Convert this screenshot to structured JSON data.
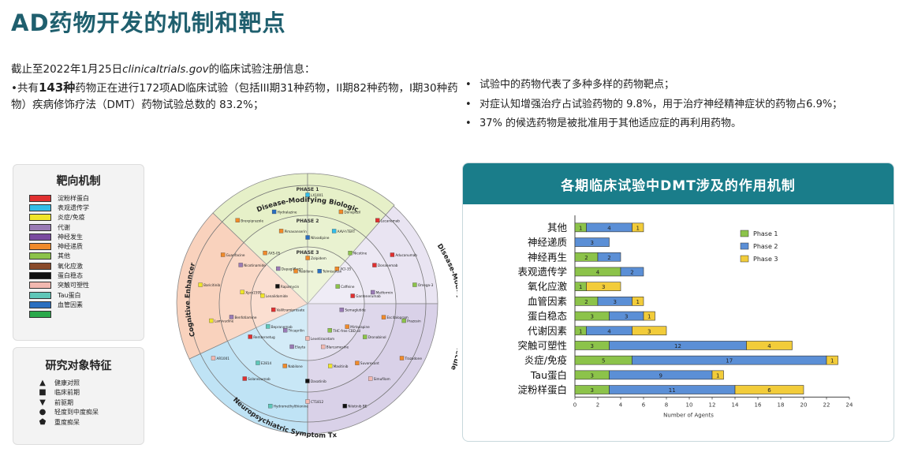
{
  "page": {
    "title": "AD药物开发的机制和靶点",
    "intro_prefix": "截止至2022年1月25日",
    "intro_site": "clinicaltrials.gov",
    "intro_suffix": "的临床试验注册信息：",
    "left_bullet_pre": "•共有",
    "left_bullet_bold": "143种",
    "left_bullet_rest": "药物正在进行172项AD临床试验（包括III期31种药物，II期82种药物，I期30种药物）疾病修饰疗法（DMT）药物试验总数的 83.2%；",
    "right_bullets": [
      "试验中的药物代表了多种多样的药物靶点；",
      "对症认知增强治疗占试验药物的 9.8%，用于治疗神经精神症状的药物占6.9%；",
      "37% 的候选药物是被批准用于其他适应症的再利用药物。"
    ]
  },
  "legend_targets": {
    "title": "靶向机制",
    "items": [
      {
        "label": "淀粉样蛋白",
        "color": "#e03030"
      },
      {
        "label": "表观遗传学",
        "color": "#33bde8"
      },
      {
        "label": "炎症/免疫",
        "color": "#f0e62a"
      },
      {
        "label": "代谢",
        "color": "#9a7bb5"
      },
      {
        "label": "神经发生",
        "color": "#7a4aa0"
      },
      {
        "label": "神经递质",
        "color": "#f08a2a"
      },
      {
        "label": "其他",
        "color": "#8cc34a"
      },
      {
        "label": "氧化应激",
        "color": "#8a4a2a"
      },
      {
        "label": "蛋白稳态",
        "color": "#111111"
      },
      {
        "label": "突触可塑性",
        "color": "#f2b8b0"
      },
      {
        "label": "Tau蛋白",
        "color": "#5fc7b8"
      },
      {
        "label": "血管因素",
        "color": "#2a6fc0"
      },
      {
        "label": "",
        "color": "#2aa84a"
      }
    ]
  },
  "legend_subjects": {
    "title": "研究对象特征",
    "items": [
      {
        "symbol": "▲",
        "label": "健康对照"
      },
      {
        "symbol": "■",
        "label": "临床前期"
      },
      {
        "symbol": "▼",
        "label": "前驱期"
      },
      {
        "symbol": "●",
        "label": "轻度到中度痴呆"
      },
      {
        "symbol": "⬟",
        "label": "重度痴呆"
      }
    ]
  },
  "wheel": {
    "outer_labels": {
      "top": "Disease-Modifying Biologic",
      "left": "Cognitive Enhancer",
      "bottom": "Neuropsychiatric Symptom Tx",
      "right": "Disease-Modifying Small Molecule"
    },
    "phases": [
      "PHASE 1",
      "PHASE 2",
      "PHASE 3"
    ],
    "sample_drugs": [
      {
        "text": "LX1001",
        "color": "#33bde8"
      },
      {
        "text": "AAV-hTERT",
        "color": "#33bde8"
      },
      {
        "text": "ACI-35",
        "color": "#f08a2a"
      },
      {
        "text": "Donepezil",
        "color": "#f08a2a"
      },
      {
        "text": "Nicotine",
        "color": "#8cc34a"
      },
      {
        "text": "Caffeine",
        "color": "#8cc34a"
      },
      {
        "text": "Lecanemab",
        "color": "#e03030"
      },
      {
        "text": "Donanemab",
        "color": "#e03030"
      },
      {
        "text": "Gantenerumab",
        "color": "#e03030"
      },
      {
        "text": "Aducanumab",
        "color": "#e03030"
      },
      {
        "text": "Metformin",
        "color": "#9a7bb5"
      },
      {
        "text": "Semaglutide",
        "color": "#9a7bb5"
      },
      {
        "text": "Omega-3",
        "color": "#8cc34a"
      },
      {
        "text": "Escitalopram",
        "color": "#f08a2a"
      },
      {
        "text": "Mirtazapine",
        "color": "#f08a2a"
      },
      {
        "text": "Prazosin",
        "color": "#8cc34a"
      },
      {
        "text": "Dronabinol",
        "color": "#8cc34a"
      },
      {
        "text": "THC-free CBD oil",
        "color": "#8cc34a"
      },
      {
        "text": "Trazodone",
        "color": "#f08a2a"
      },
      {
        "text": "Suvorexant",
        "color": "#f08a2a"
      },
      {
        "text": "Blarcamesine",
        "color": "#f2b8b0"
      },
      {
        "text": "Simufilam",
        "color": "#f2b8b0"
      },
      {
        "text": "Masitinib",
        "color": "#f0e62a"
      },
      {
        "text": "Levetiracetam",
        "color": "#f2b8b0"
      },
      {
        "text": "Nilotinib BE",
        "color": "#111111"
      },
      {
        "text": "Dasatinib",
        "color": "#111111"
      },
      {
        "text": "Elayta",
        "color": "#9a7bb5"
      },
      {
        "text": "CT1812",
        "color": "#f2b8b0"
      },
      {
        "text": "Nabilone",
        "color": "#f08a2a"
      },
      {
        "text": "Tricaprilin",
        "color": "#9a7bb5"
      },
      {
        "text": "Hydromethylthionine",
        "color": "#5fc7b8"
      },
      {
        "text": "E2814",
        "color": "#5fc7b8"
      },
      {
        "text": "Bepranemab",
        "color": "#5fc7b8"
      },
      {
        "text": "Solanezumab",
        "color": "#e03030"
      },
      {
        "text": "Remternetug",
        "color": "#e03030"
      },
      {
        "text": "Valiltramiprosate",
        "color": "#e03030"
      },
      {
        "text": "AR1001",
        "color": "#f2b8b0"
      },
      {
        "text": "Benfotiamine",
        "color": "#9a7bb5"
      },
      {
        "text": "Lenalidomide",
        "color": "#f0e62a"
      },
      {
        "text": "Lamivudine",
        "color": "#f0e62a"
      },
      {
        "text": "Xpro1595",
        "color": "#f0e62a"
      },
      {
        "text": "Rapamycin",
        "color": "#111111"
      },
      {
        "text": "Baricitinib",
        "color": "#f0e62a"
      },
      {
        "text": "Nicotinamide",
        "color": "#9a7bb5"
      },
      {
        "text": "Dapagliflozin",
        "color": "#9a7bb5"
      },
      {
        "text": "Guanfacine",
        "color": "#f08a2a"
      },
      {
        "text": "AXS-05",
        "color": "#f08a2a"
      },
      {
        "text": "Nabilone",
        "color": "#f08a2a"
      },
      {
        "text": "Brexpiprazole",
        "color": "#f08a2a"
      },
      {
        "text": "Pimavanserin",
        "color": "#f08a2a"
      },
      {
        "text": "Zolpidem",
        "color": "#f08a2a"
      },
      {
        "text": "Hydralazine",
        "color": "#2a6fc0"
      },
      {
        "text": "Nilvadipine",
        "color": "#2a6fc0"
      },
      {
        "text": "Telmisartan",
        "color": "#2a6fc0"
      }
    ]
  },
  "chart_data": {
    "type": "bar",
    "title": "各期临床试验中DMT涉及的作用机制",
    "xlabel": "Number of Agents",
    "ylabel": "",
    "xlim": [
      0,
      24
    ],
    "xticks": [
      0,
      2,
      4,
      6,
      8,
      10,
      12,
      14,
      16,
      18,
      20,
      22,
      24
    ],
    "stacked": true,
    "orientation": "horizontal",
    "legend_position": "top-right",
    "categories": [
      "其他",
      "神经递质",
      "神经再生",
      "表观遗传学",
      "氧化应激",
      "血管因素",
      "蛋白稳态",
      "代谢因素",
      "突触可塑性",
      "炎症/免疫",
      "Tau蛋白",
      "淀粉样蛋白"
    ],
    "series": [
      {
        "name": "Phase 1",
        "color": "#8cc34a",
        "values": [
          1,
          0,
          2,
          4,
          1,
          2,
          3,
          1,
          3,
          5,
          3,
          3
        ]
      },
      {
        "name": "Phase 2",
        "color": "#5b8fd6",
        "values": [
          4,
          3,
          2,
          2,
          0,
          3,
          3,
          4,
          12,
          17,
          9,
          11
        ]
      },
      {
        "name": "Phase 3",
        "color": "#f2cc3a",
        "values": [
          1,
          0,
          0,
          0,
          3,
          1,
          1,
          3,
          4,
          1,
          1,
          6
        ]
      }
    ]
  }
}
